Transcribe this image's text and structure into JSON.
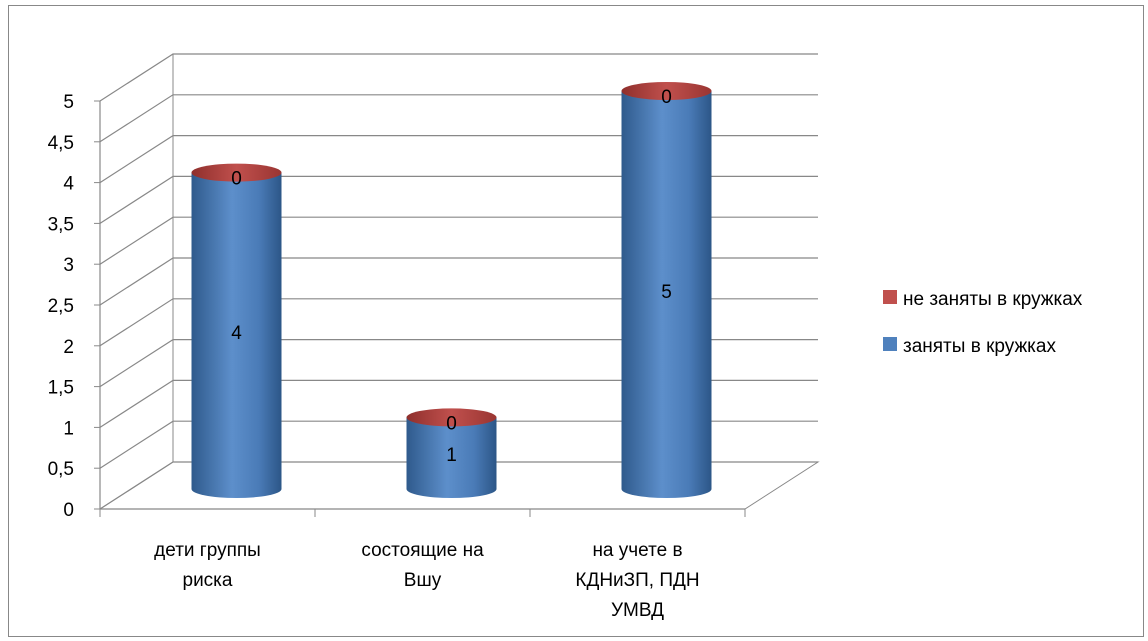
{
  "chart_data": {
    "type": "bar",
    "style": "3d-cylinder-stacked",
    "categories": [
      [
        "дети группы",
        "риска"
      ],
      [
        "состоящие на",
        "Вшу"
      ],
      [
        "на учете в",
        "КДНиЗП, ПДН",
        "УМВД"
      ]
    ],
    "series": [
      {
        "name": "заняты в кружках",
        "values": [
          4,
          1,
          5
        ],
        "color": "#4F81BD"
      },
      {
        "name": "не заняты в кружках",
        "values": [
          0,
          0,
          0
        ],
        "color": "#C0504D"
      }
    ],
    "yticks": [
      "0",
      "0,5",
      "1",
      "1,5",
      "2",
      "2,5",
      "3",
      "3,5",
      "4",
      "4,5",
      "5"
    ],
    "ylim": [
      0,
      5
    ],
    "grid": true,
    "legend_position": "right"
  }
}
